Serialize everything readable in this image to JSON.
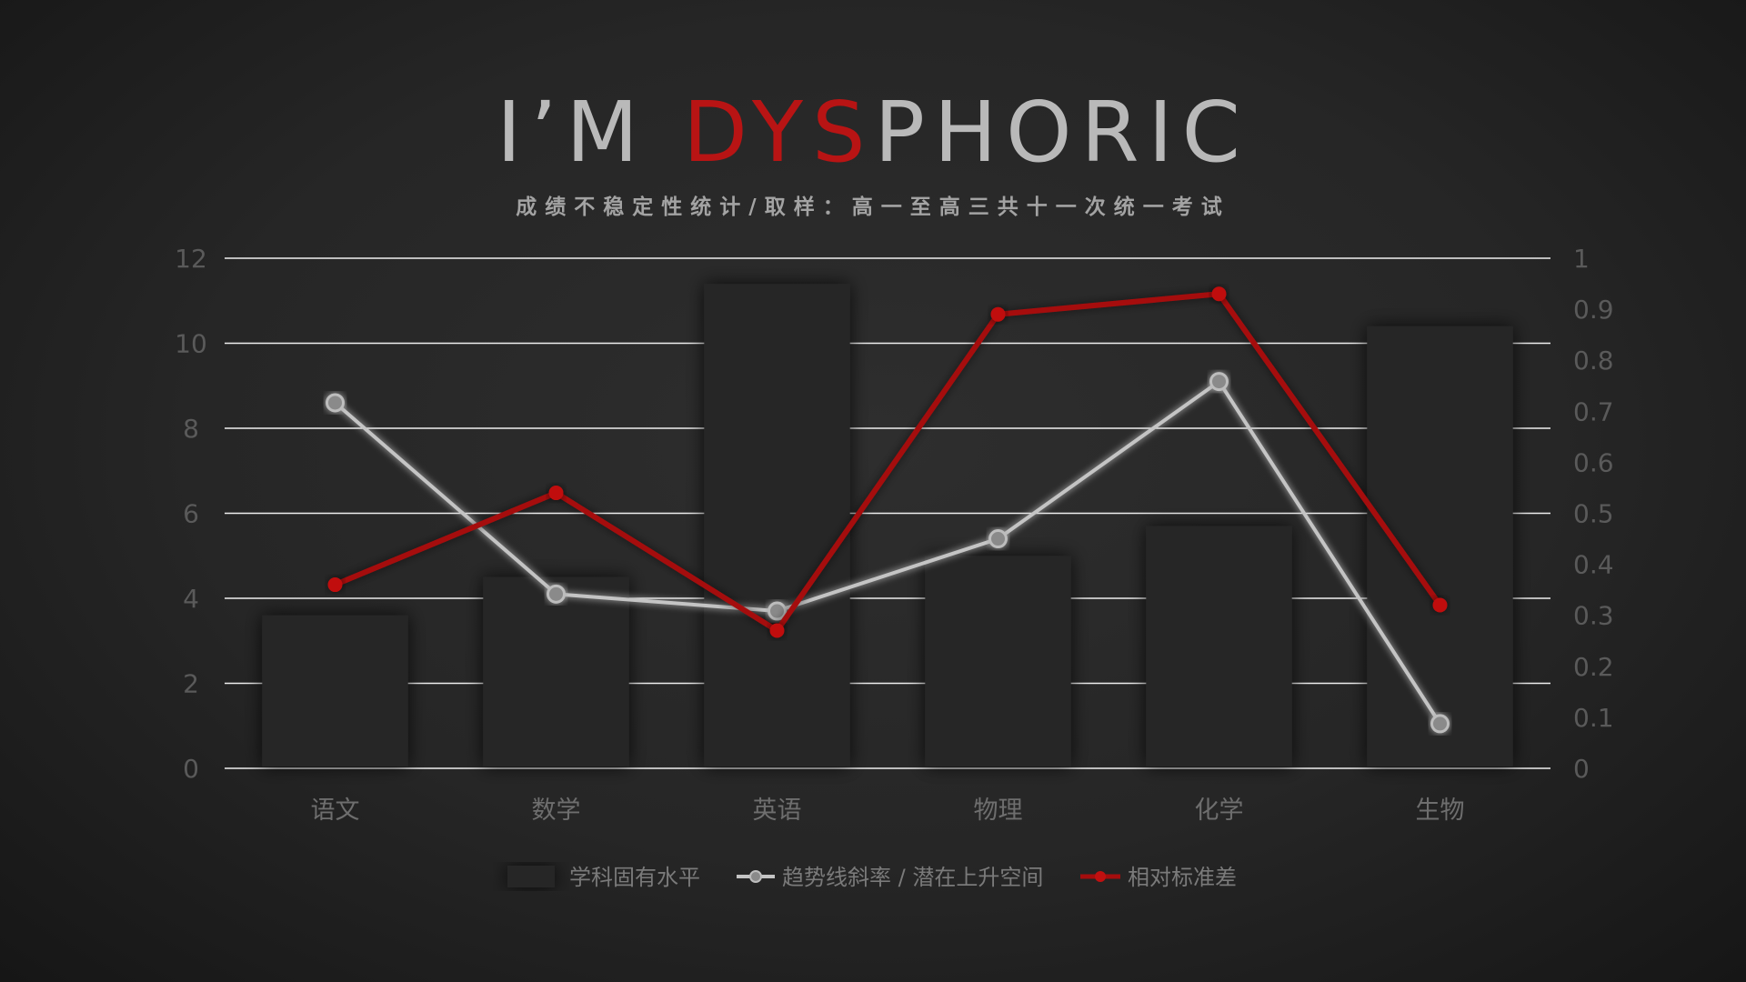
{
  "header": {
    "title_part1": "I’M ",
    "title_accent": "DYS",
    "title_part2": "PHORIC",
    "subtitle": "成绩不稳定性统计/取样：高一至高三共十一次统一考试"
  },
  "colors": {
    "bar": "#262626",
    "line_trend": "#c4c4c4",
    "line_std": "#a50d0d",
    "grid": "#f0f0f0"
  },
  "chart_data": {
    "type": "bar",
    "categories": [
      "语文",
      "数学",
      "英语",
      "物理",
      "化学",
      "生物"
    ],
    "series": [
      {
        "name": "学科固有水平",
        "type": "bar",
        "axis": "left",
        "values": [
          3.6,
          4.5,
          11.4,
          5.0,
          5.7,
          10.4
        ]
      },
      {
        "name": "趋势线斜率 / 潜在上升空间",
        "type": "line",
        "axis": "left",
        "values": [
          8.6,
          4.1,
          3.7,
          5.4,
          9.1,
          1.05
        ]
      },
      {
        "name": "相对标准差",
        "type": "line",
        "axis": "right",
        "values": [
          0.36,
          0.54,
          0.27,
          0.89,
          0.93,
          0.32
        ]
      }
    ],
    "ylim_left": [
      0,
      12
    ],
    "yticks_left": [
      "0",
      "2",
      "4",
      "6",
      "8",
      "10",
      "12"
    ],
    "ylim_right": [
      0,
      1
    ],
    "yticks_right": [
      "0",
      "0.1",
      "0.2",
      "0.3",
      "0.4",
      "0.5",
      "0.6",
      "0.7",
      "0.8",
      "0.9",
      "1"
    ],
    "grid": true,
    "legend": "bottom-center"
  }
}
